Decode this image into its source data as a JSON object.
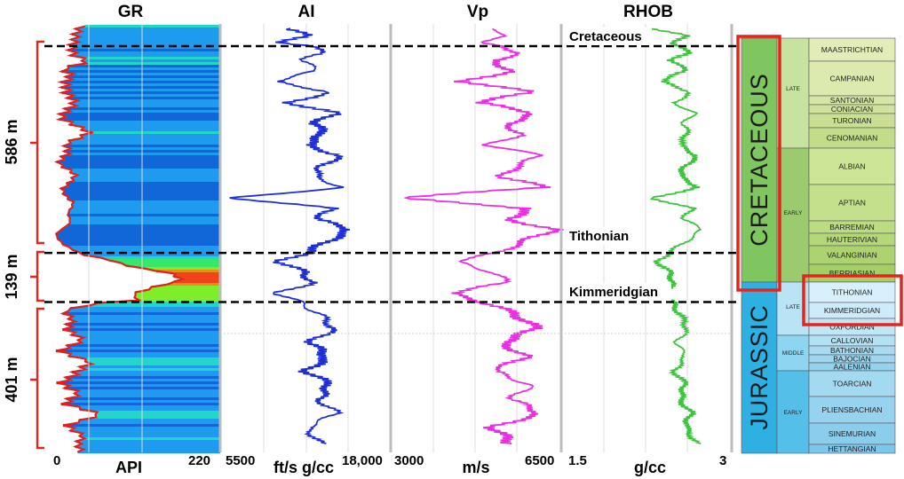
{
  "chart_data": {
    "type": "line",
    "depth_range_m": [
      0,
      1126
    ],
    "tracks": [
      {
        "id": "gr",
        "title": "GR",
        "unit": "API",
        "min_label": "0",
        "max_label": "220",
        "xlim": [
          0,
          220
        ],
        "line_color": "#e0201c",
        "fill": "colored"
      },
      {
        "id": "ai",
        "title": "AI",
        "unit": "ft/s g/cc",
        "min_label": "5500",
        "max_label": "18,000",
        "xlim": [
          5500,
          18000
        ],
        "line_color": "#1f2fd6"
      },
      {
        "id": "vp",
        "title": "Vp",
        "unit": "m/s",
        "min_label": "3000",
        "max_label": "6500",
        "xlim": [
          3000,
          6500
        ],
        "line_color": "#ea2ee3"
      },
      {
        "id": "rhob",
        "title": "RHOB",
        "unit": "g/cc",
        "min_label": "1.5",
        "max_label": "3",
        "xlim": [
          1.5,
          3
        ],
        "line_color": "#3dc43d"
      }
    ],
    "horizons": [
      {
        "name": "Cretaceous",
        "depth": 0
      },
      {
        "name": "Tithonian",
        "depth": 586
      },
      {
        "name": "Kimmeridgian",
        "depth": 725
      }
    ],
    "intervals": [
      {
        "label": "586 m",
        "top": 0,
        "base": 586
      },
      {
        "label": "139 m",
        "top": 586,
        "base": 725
      },
      {
        "label": "401 m",
        "top": 725,
        "base": 1126
      }
    ],
    "series": [
      {
        "name": "GR",
        "depth": [
          -20,
          0,
          20,
          40,
          60,
          80,
          100,
          130,
          160,
          200,
          240,
          270,
          300,
          330,
          360,
          400,
          440,
          470,
          500,
          530,
          560,
          586,
          600,
          620,
          640,
          660,
          680,
          700,
          715,
          725,
          745,
          770,
          800,
          830,
          860,
          890,
          920,
          950,
          980,
          1010,
          1040,
          1070,
          1100,
          1126
        ],
        "values": [
          40,
          30,
          25,
          45,
          20,
          35,
          25,
          18,
          30,
          22,
          48,
          20,
          30,
          15,
          28,
          20,
          35,
          18,
          25,
          15,
          20,
          35,
          70,
          105,
          165,
          175,
          130,
          100,
          115,
          60,
          25,
          35,
          18,
          40,
          20,
          55,
          30,
          15,
          45,
          20,
          60,
          25,
          50,
          35
        ]
      },
      {
        "name": "AI",
        "depth": [
          -50,
          -30,
          -10,
          0,
          20,
          40,
          70,
          100,
          130,
          160,
          190,
          220,
          250,
          280,
          310,
          340,
          370,
          400,
          430,
          460,
          490,
          520,
          550,
          586,
          610,
          640,
          670,
          700,
          725,
          760,
          800,
          840,
          880,
          920,
          960,
          1000,
          1040,
          1080,
          1126
        ],
        "values": [
          10500,
          11800,
          10000,
          12200,
          13000,
          11500,
          12600,
          9400,
          13600,
          10500,
          14000,
          12400,
          13100,
          11800,
          14300,
          13000,
          12400,
          14600,
          6300,
          13800,
          12600,
          15100,
          13600,
          11800,
          9800,
          11600,
          12300,
          9600,
          11300,
          12800,
          13900,
          12100,
          13400,
          11800,
          13600,
          12700,
          14100,
          11900,
          12800
        ]
      },
      {
        "name": "Vp",
        "depth": [
          -50,
          -30,
          -10,
          0,
          20,
          40,
          70,
          100,
          130,
          160,
          190,
          220,
          250,
          280,
          310,
          340,
          370,
          400,
          430,
          460,
          490,
          520,
          550,
          586,
          610,
          640,
          670,
          700,
          725,
          760,
          800,
          840,
          880,
          920,
          960,
          1000,
          1040,
          1080,
          1126
        ],
        "values": [
          5000,
          5500,
          4700,
          5300,
          5700,
          5100,
          5500,
          4500,
          5900,
          4800,
          6000,
          5400,
          5700,
          5000,
          6100,
          5600,
          5300,
          6200,
          3100,
          5900,
          5400,
          6400,
          5800,
          5200,
          4300,
          5100,
          5400,
          4200,
          4900,
          5600,
          6000,
          5300,
          5800,
          5100,
          5900,
          5500,
          6100,
          5100,
          5500
        ]
      },
      {
        "name": "RHOB",
        "depth": [
          -50,
          -30,
          -10,
          0,
          20,
          40,
          70,
          100,
          130,
          160,
          190,
          220,
          250,
          280,
          310,
          340,
          370,
          400,
          430,
          460,
          490,
          520,
          550,
          586,
          610,
          640,
          670,
          700,
          725,
          760,
          800,
          840,
          880,
          920,
          960,
          1000,
          1040,
          1080,
          1126
        ],
        "values": [
          2.3,
          2.6,
          2.5,
          2.55,
          2.62,
          2.48,
          2.6,
          2.38,
          2.65,
          2.5,
          2.68,
          2.58,
          2.62,
          2.55,
          2.7,
          2.6,
          2.55,
          2.72,
          2.3,
          2.66,
          2.58,
          2.75,
          2.62,
          2.45,
          2.35,
          2.45,
          2.5,
          2.38,
          2.48,
          2.55,
          2.62,
          2.52,
          2.6,
          2.5,
          2.6,
          2.55,
          2.65,
          2.6,
          2.7
        ]
      }
    ]
  },
  "chronostratigraphy": {
    "systems": [
      {
        "name": "CRETACEOUS",
        "color": "#7fc560"
      },
      {
        "name": "JURASSIC",
        "color": "#2fb0e2"
      }
    ],
    "series": [
      {
        "name": "LATE",
        "system": "CRETACEOUS",
        "color": "#c8e3a0"
      },
      {
        "name": "EARLY",
        "system": "CRETACEOUS",
        "color": "#9ccb6f"
      },
      {
        "name": "LATE",
        "system": "JURASSIC",
        "color": "#b8e4f6"
      },
      {
        "name": "MIDDLE",
        "system": "JURASSIC",
        "color": "#8ed5f2"
      },
      {
        "name": "EARLY",
        "system": "JURASSIC",
        "color": "#54c0ea"
      }
    ],
    "stages": [
      "MAASTRICHTIAN",
      "CAMPANIAN",
      "SANTONIAN",
      "CONIACIAN",
      "TURONIAN",
      "CENOMANIAN",
      "ALBIAN",
      "APTIAN",
      "BARREMIAN",
      "HAUTERIVIAN",
      "VALANGINIAN",
      "BERRIASIAN",
      "TITHONIAN",
      "KIMMERIDGIAN",
      "OXFORDIAN",
      "CALLOVIAN",
      "BATHONIAN",
      "BAJOCIAN",
      "AALENIAN",
      "TOARCIAN",
      "PLIENSBACHIAN",
      "SINEMURIAN",
      "HETTANGIAN"
    ],
    "highlight_color": "#e8231c"
  }
}
